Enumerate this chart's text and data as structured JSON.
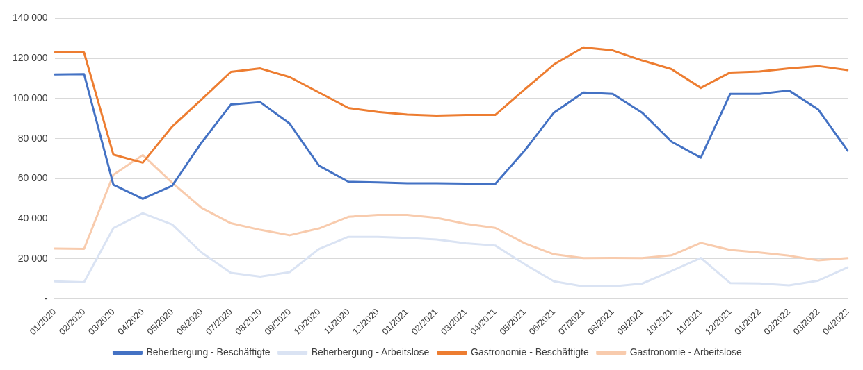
{
  "chart_data": {
    "type": "line",
    "categories": [
      "01/2020",
      "02/2020",
      "03/2020",
      "04/2020",
      "05/2020",
      "06/2020",
      "07/2020",
      "08/2020",
      "09/2020",
      "10/2020",
      "11/2020",
      "12/2020",
      "01/2021",
      "02/2021",
      "03/2021",
      "04/2021",
      "05/2021",
      "06/2021",
      "07/2021",
      "08/2021",
      "09/2021",
      "10/2021",
      "11/2021",
      "12/2021",
      "01/2022",
      "02/2022",
      "03/2022",
      "04/2022"
    ],
    "series": [
      {
        "name": "Beherbergung - Beschäftigte",
        "color": "#4472c4",
        "values": [
          112000,
          112200,
          57000,
          50000,
          56500,
          78000,
          97000,
          98200,
          87500,
          66500,
          58500,
          58200,
          57700,
          57700,
          57600,
          57400,
          74000,
          93000,
          103000,
          102300,
          93000,
          78500,
          70500,
          102300,
          102300,
          104000,
          94500,
          74000
        ]
      },
      {
        "name": "Beherbergung - Arbeitslose",
        "color": "#dae3f3",
        "values": [
          8800,
          8400,
          35400,
          42800,
          37200,
          23200,
          13100,
          11200,
          13400,
          25000,
          31000,
          31000,
          30500,
          29700,
          27800,
          26700,
          17400,
          8800,
          6300,
          6300,
          7700,
          14000,
          20500,
          8000,
          7800,
          6800,
          9200,
          15800
        ]
      },
      {
        "name": "Gastronomie - Beschäftigte",
        "color": "#ed7d31",
        "values": [
          123000,
          123000,
          72000,
          68000,
          86000,
          99500,
          113300,
          115000,
          110700,
          103000,
          95300,
          93300,
          92000,
          91500,
          91800,
          91800,
          104500,
          117000,
          125500,
          124000,
          119000,
          114700,
          105300,
          113000,
          113500,
          115000,
          116200,
          114200
        ]
      },
      {
        "name": "Gastronomie - Arbeitslose",
        "color": "#f8cbad",
        "values": [
          25200,
          25000,
          62000,
          71800,
          58000,
          45500,
          37800,
          34500,
          31800,
          35200,
          41000,
          42000,
          42000,
          40500,
          37500,
          35500,
          27800,
          22300,
          20400,
          20500,
          20400,
          21800,
          28000,
          24500,
          23200,
          21600,
          19300,
          20400
        ]
      }
    ],
    "ylim": [
      0,
      140000
    ],
    "yticks": [
      {
        "value": 0,
        "label": "-"
      },
      {
        "value": 20000,
        "label": "20 000"
      },
      {
        "value": 40000,
        "label": "40 000"
      },
      {
        "value": 60000,
        "label": "60 000"
      },
      {
        "value": 80000,
        "label": "80 000"
      },
      {
        "value": 100000,
        "label": "100 000"
      },
      {
        "value": 120000,
        "label": "120 000"
      },
      {
        "value": 140000,
        "label": "140 000"
      }
    ],
    "grid": "y",
    "legend": "bottom",
    "marker": "none",
    "line_style": "solid"
  }
}
